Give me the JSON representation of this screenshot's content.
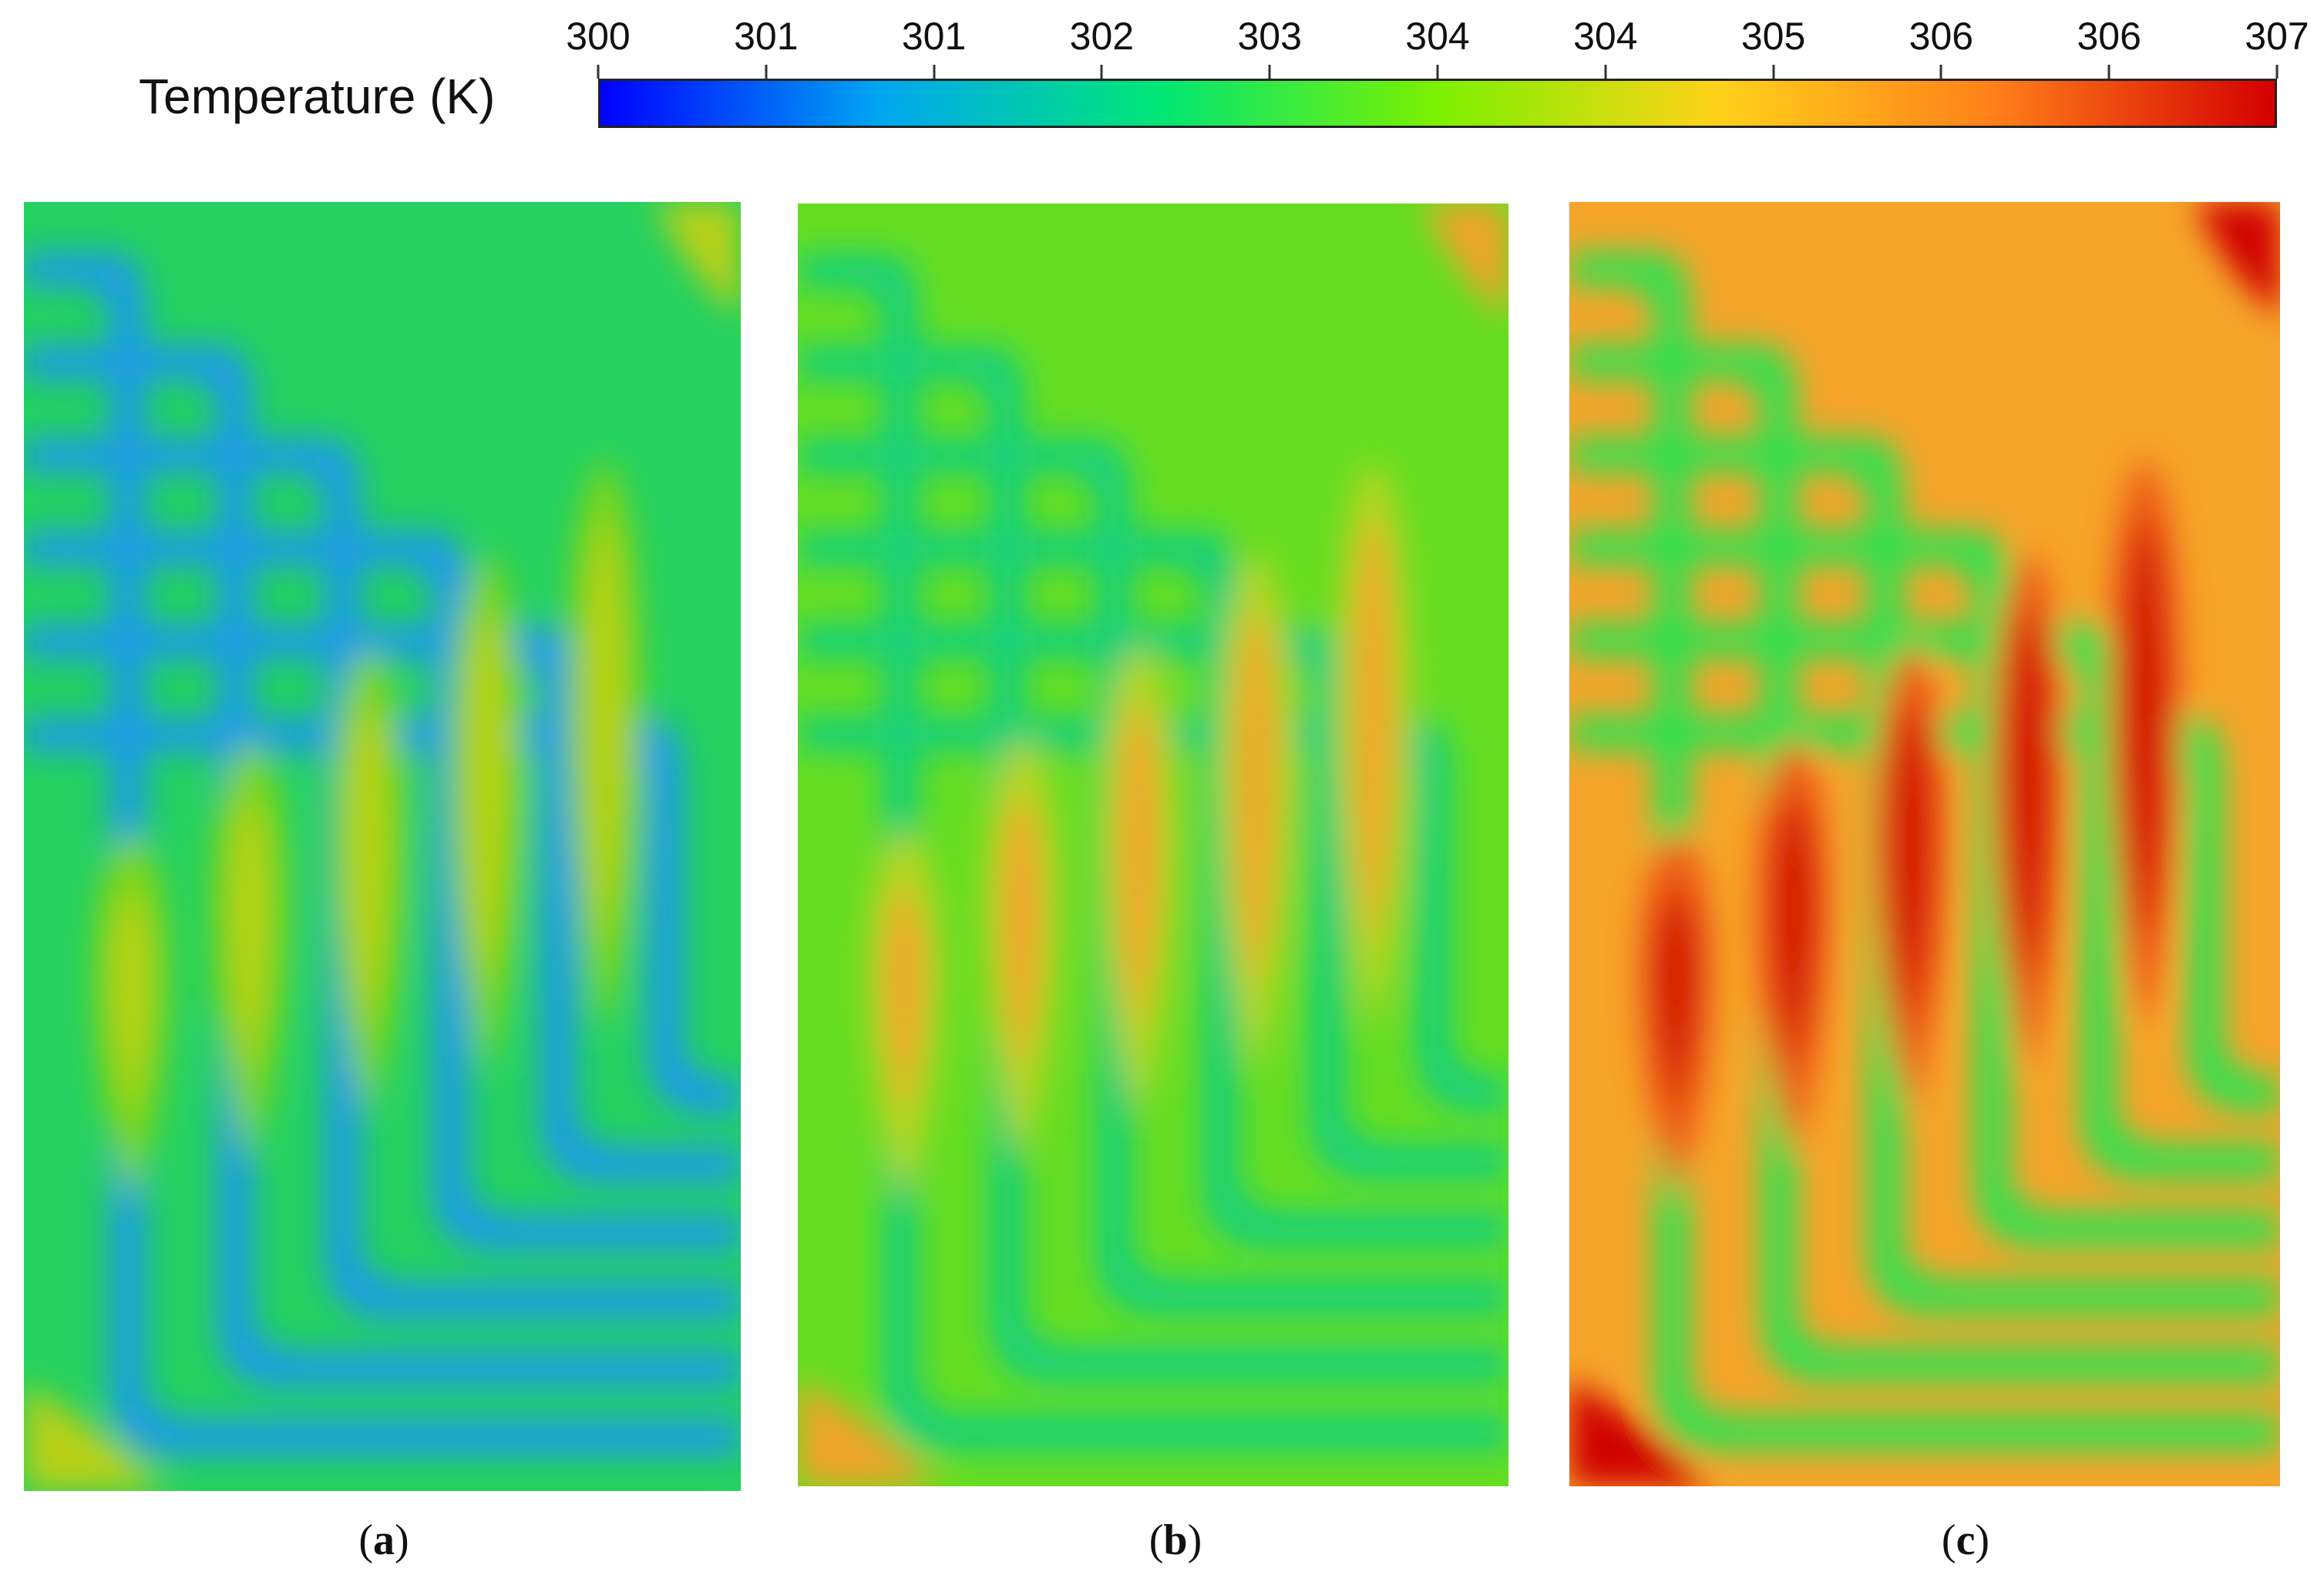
{
  "colorbar": {
    "title": "Temperature (K)",
    "tick_labels": [
      "300",
      "301",
      "301",
      "302",
      "303",
      "304",
      "304",
      "305",
      "306",
      "306",
      "307"
    ],
    "range": [
      300,
      307
    ],
    "colormap": [
      "#0000ff",
      "#00a6f2",
      "#00e676",
      "#7cf000",
      "#ffd21a",
      "#ff7f1a",
      "#d40000"
    ]
  },
  "panels": [
    {
      "caption_open": "(",
      "caption_letter": "a",
      "caption_close": ")",
      "temperature_level": 0.43,
      "palette": {
        "cold": "#1f9be6",
        "mid": "#25d160",
        "warm": "#7ed618",
        "hot": "#b8d017"
      }
    },
    {
      "caption_open": "(",
      "caption_letter": "b",
      "caption_close": ")",
      "temperature_level": 0.62,
      "palette": {
        "cold": "#18d07a",
        "mid": "#66dd22",
        "warm": "#b8d520",
        "hot": "#f0a42a"
      }
    },
    {
      "caption_open": "(",
      "caption_letter": "c",
      "caption_close": ")",
      "temperature_level": 0.9,
      "palette": {
        "cold": "#30e050",
        "mid": "#f6a42a",
        "warm": "#ee5a16",
        "hot": "#d00000"
      }
    }
  ]
}
